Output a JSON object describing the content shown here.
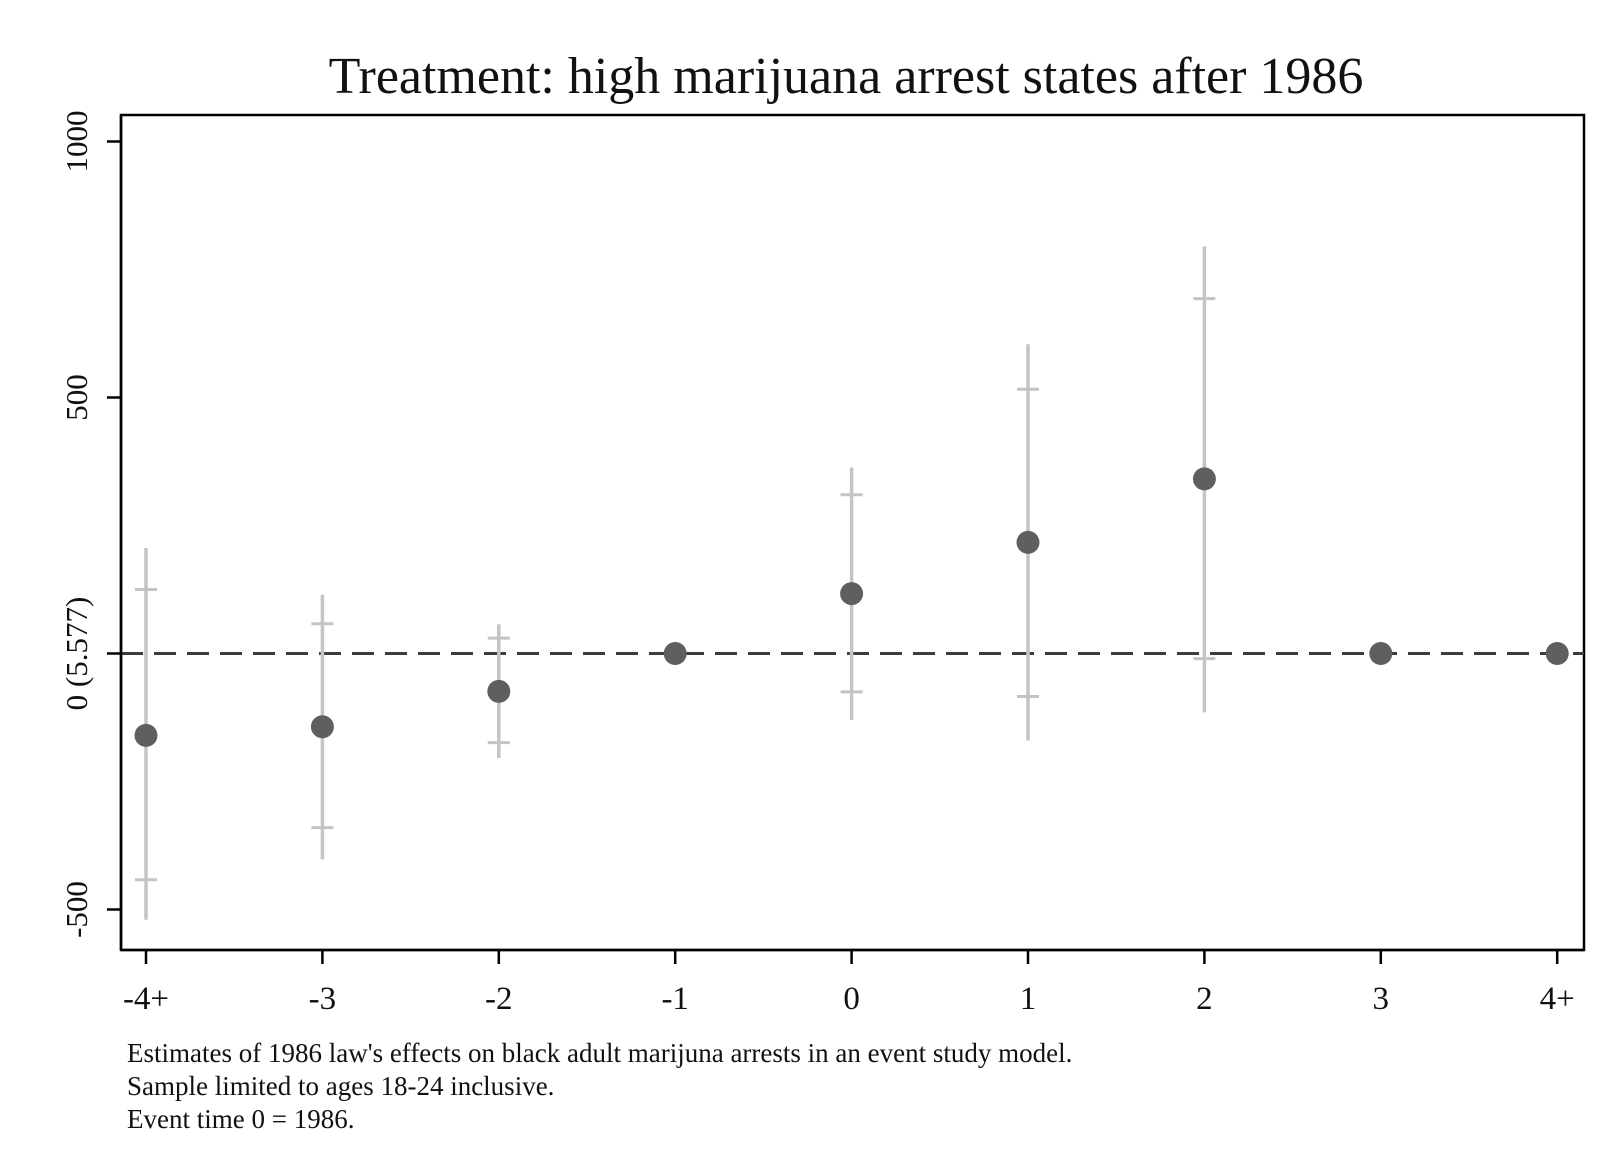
{
  "chart_data": {
    "type": "scatter",
    "title": "Treatment: high marijuana arrest states after 1986",
    "xlabel": "",
    "ylabel": "",
    "categories": [
      "-4+",
      "-3",
      "-2",
      "-1",
      "0",
      "1",
      "2",
      "3",
      "4+"
    ],
    "y_ticks": [
      {
        "value": -500,
        "label": "-500"
      },
      {
        "value": 0,
        "label": "0 (5.577)"
      },
      {
        "value": 500,
        "label": "500"
      },
      {
        "value": 1000,
        "label": "1000"
      }
    ],
    "ylim": [
      -570,
      1050
    ],
    "grid": false,
    "reference_line": {
      "value": 0,
      "style": "dashed"
    },
    "series": [
      {
        "values": [
          -160,
          -143,
          -74,
          0,
          117,
          217,
          341,
          0,
          0
        ],
        "ci95_low": [
          -520,
          -402,
          -204,
          null,
          -130,
          -170,
          -115,
          null,
          null
        ],
        "ci95_high": [
          206,
          115,
          57,
          null,
          363,
          604,
          795,
          null,
          null
        ],
        "ci90_low": [
          -442,
          -340,
          -174,
          null,
          -75,
          -84,
          -10,
          null,
          null
        ],
        "ci90_high": [
          125,
          58,
          30,
          null,
          310,
          516,
          693,
          null,
          null
        ]
      }
    ],
    "notes": [
      "Estimates of 1986 law's effects on black adult marijuna arrests in an event study model.",
      "Sample limited to ages 18-24 inclusive.",
      "Event time 0 = 1986."
    ],
    "colors": {
      "point": "#5f5f5f",
      "ci": "#c4c4c4",
      "reference_line": "#3c3c3c",
      "frame": "#000000"
    }
  }
}
